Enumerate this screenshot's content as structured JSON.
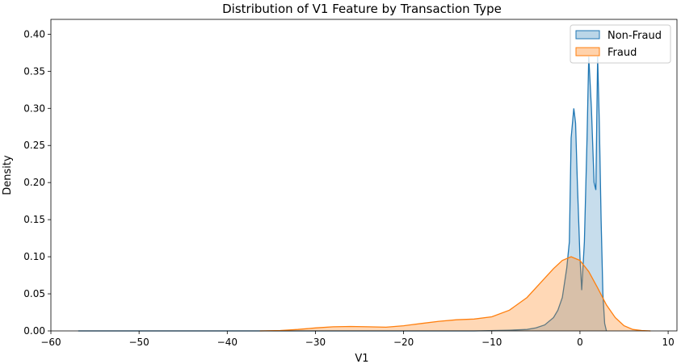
{
  "chart_data": {
    "type": "area",
    "title": "Distribution of V1 Feature by Transaction Type",
    "xlabel": "V1",
    "ylabel": "Density",
    "xlim": [
      -60,
      11
    ],
    "ylim": [
      0,
      0.42
    ],
    "xticks": [
      -60,
      -50,
      -40,
      -30,
      -20,
      -10,
      0,
      10
    ],
    "xtick_labels": [
      "−60",
      "−50",
      "−40",
      "−30",
      "−20",
      "−10",
      "0",
      "10"
    ],
    "yticks": [
      0,
      0.05,
      0.1,
      0.15,
      0.2,
      0.25,
      0.3,
      0.35,
      0.4
    ],
    "ytick_labels": [
      "0.00",
      "0.05",
      "0.10",
      "0.15",
      "0.20",
      "0.25",
      "0.30",
      "0.35",
      "0.40"
    ],
    "grid": false,
    "legend_position": "top-right",
    "series": [
      {
        "name": "Non-Fraud",
        "color": "#1f77b4",
        "fill": "#1f77b4",
        "fill_opacity": 0.25,
        "x": [
          -56.9,
          -45,
          -36,
          -30,
          -20,
          -12,
          -8,
          -6,
          -5,
          -4,
          -3,
          -2.5,
          -2,
          -1.5,
          -1.2,
          -1.0,
          -0.7,
          -0.5,
          -0.3,
          0,
          0.2,
          0.5,
          0.8,
          1.0,
          1.3,
          1.6,
          1.8,
          2.0,
          2.2,
          2.4,
          2.6,
          2.8,
          3.0
        ],
        "y": [
          0,
          0,
          0,
          0,
          0,
          0,
          0.001,
          0.002,
          0.004,
          0.008,
          0.018,
          0.028,
          0.045,
          0.085,
          0.12,
          0.26,
          0.3,
          0.28,
          0.2,
          0.1,
          0.055,
          0.12,
          0.26,
          0.37,
          0.3,
          0.2,
          0.19,
          0.37,
          0.28,
          0.15,
          0.05,
          0.01,
          0.0
        ]
      },
      {
        "name": "Fraud",
        "color": "#ff7f0e",
        "fill": "#ff7f0e",
        "fill_opacity": 0.3,
        "x": [
          -36.3,
          -34,
          -32,
          -30,
          -28,
          -26,
          -24,
          -22,
          -20,
          -18,
          -16,
          -14,
          -12,
          -10,
          -8,
          -6,
          -4,
          -3,
          -2,
          -1,
          0,
          1,
          2,
          3,
          4,
          5,
          6,
          7,
          8
        ],
        "y": [
          0,
          0.0005,
          0.002,
          0.004,
          0.0055,
          0.006,
          0.0055,
          0.005,
          0.007,
          0.01,
          0.013,
          0.015,
          0.016,
          0.019,
          0.028,
          0.045,
          0.071,
          0.084,
          0.095,
          0.1,
          0.095,
          0.08,
          0.058,
          0.035,
          0.018,
          0.007,
          0.002,
          0.0005,
          0.0
        ]
      }
    ]
  }
}
